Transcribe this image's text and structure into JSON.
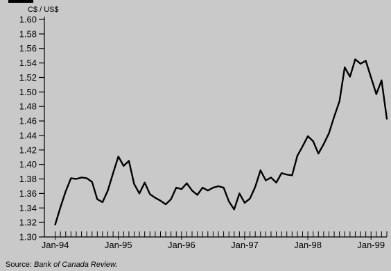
{
  "chart_data": {
    "type": "line",
    "title": "",
    "xlabel": "",
    "ylabel": "C$ / US$",
    "ylim": [
      1.3,
      1.6
    ],
    "yticks": [
      "1.30",
      "1.32",
      "1.34",
      "1.36",
      "1.38",
      "1.40",
      "1.42",
      "1.44",
      "1.46",
      "1.48",
      "1.50",
      "1.52",
      "1.54",
      "1.56",
      "1.58",
      "1.60"
    ],
    "xtick_labels": [
      "Jan-94",
      "Jan-95",
      "Jan-96",
      "Jan-97",
      "Jan-98",
      "Jan-99"
    ],
    "xrange": [
      "1994-01",
      "1999-04"
    ],
    "grid": false,
    "line_color": "#000000",
    "background_color": "#c9c9c9",
    "series": [
      {
        "name": "",
        "x": [
          "1994-01",
          "1994-02",
          "1994-03",
          "1994-04",
          "1994-05",
          "1994-06",
          "1994-07",
          "1994-08",
          "1994-09",
          "1994-10",
          "1994-11",
          "1994-12",
          "1995-01",
          "1995-02",
          "1995-03",
          "1995-04",
          "1995-05",
          "1995-06",
          "1995-07",
          "1995-08",
          "1995-09",
          "1995-10",
          "1995-11",
          "1995-12",
          "1996-01",
          "1996-02",
          "1996-03",
          "1996-04",
          "1996-05",
          "1996-06",
          "1996-07",
          "1996-08",
          "1996-09",
          "1996-10",
          "1996-11",
          "1996-12",
          "1997-01",
          "1997-02",
          "1997-03",
          "1997-04",
          "1997-05",
          "1997-06",
          "1997-07",
          "1997-08",
          "1997-09",
          "1997-10",
          "1997-11",
          "1997-12",
          "1998-01",
          "1998-02",
          "1998-03",
          "1998-04",
          "1998-05",
          "1998-06",
          "1998-07",
          "1998-08",
          "1998-09",
          "1998-10",
          "1998-11",
          "1998-12",
          "1999-01",
          "1999-02",
          "1999-03",
          "1999-04"
        ],
        "values": [
          1.317,
          1.341,
          1.363,
          1.381,
          1.38,
          1.382,
          1.381,
          1.376,
          1.352,
          1.348,
          1.364,
          1.388,
          1.411,
          1.398,
          1.405,
          1.373,
          1.36,
          1.375,
          1.359,
          1.354,
          1.35,
          1.345,
          1.352,
          1.368,
          1.366,
          1.374,
          1.364,
          1.358,
          1.368,
          1.364,
          1.368,
          1.37,
          1.368,
          1.349,
          1.338,
          1.36,
          1.347,
          1.353,
          1.369,
          1.392,
          1.378,
          1.382,
          1.375,
          1.388,
          1.386,
          1.385,
          1.412,
          1.425,
          1.439,
          1.432,
          1.415,
          1.428,
          1.443,
          1.466,
          1.487,
          1.534,
          1.521,
          1.545,
          1.539,
          1.543,
          1.52,
          1.497,
          1.516,
          1.463
        ]
      }
    ]
  },
  "source": {
    "prefix": "Source: ",
    "name": "Bank of Canada Review."
  }
}
